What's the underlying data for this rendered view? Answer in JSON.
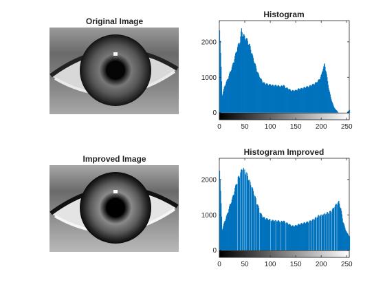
{
  "figure": {
    "panels": [
      {
        "id": "original-image",
        "title": "Original Image"
      },
      {
        "id": "histogram",
        "title": "Histogram"
      },
      {
        "id": "improved-image",
        "title": "Improved Image"
      },
      {
        "id": "histogram-improved",
        "title": "Histogram Improved"
      }
    ]
  },
  "chart_data": [
    {
      "type": "bar",
      "title": "Histogram",
      "xlabel": "",
      "ylabel": "",
      "xlim": [
        0,
        255
      ],
      "ylim": [
        -200,
        2600
      ],
      "x_ticks": [
        0,
        50,
        100,
        150,
        200,
        250
      ],
      "y_ticks": [
        0,
        1000,
        2000
      ],
      "bar_color": "#0072BD",
      "colorbar": "grayscale 0-255",
      "series": [
        {
          "values_by_intensity": [
            [
              0,
              2500
            ],
            [
              5,
              500
            ],
            [
              10,
              780
            ],
            [
              15,
              950
            ],
            [
              20,
              1150
            ],
            [
              25,
              1350
            ],
            [
              30,
              1620
            ],
            [
              35,
              1900
            ],
            [
              40,
              2080
            ],
            [
              43,
              2400
            ],
            [
              46,
              2250
            ],
            [
              50,
              2180
            ],
            [
              55,
              2080
            ],
            [
              60,
              1900
            ],
            [
              65,
              1620
            ],
            [
              70,
              1380
            ],
            [
              75,
              1150
            ],
            [
              80,
              1000
            ],
            [
              85,
              880
            ],
            [
              90,
              840
            ],
            [
              95,
              820
            ],
            [
              100,
              810
            ],
            [
              105,
              790
            ],
            [
              110,
              790
            ],
            [
              115,
              780
            ],
            [
              120,
              760
            ],
            [
              125,
              800
            ],
            [
              130,
              720
            ],
            [
              135,
              700
            ],
            [
              140,
              640
            ],
            [
              145,
              640
            ],
            [
              150,
              650
            ],
            [
              155,
              690
            ],
            [
              160,
              700
            ],
            [
              165,
              720
            ],
            [
              170,
              750
            ],
            [
              175,
              760
            ],
            [
              180,
              800
            ],
            [
              185,
              830
            ],
            [
              190,
              880
            ],
            [
              195,
              950
            ],
            [
              200,
              1100
            ],
            [
              203,
              1300
            ],
            [
              206,
              1400
            ],
            [
              209,
              1200
            ],
            [
              212,
              900
            ],
            [
              215,
              650
            ],
            [
              218,
              450
            ],
            [
              221,
              300
            ],
            [
              224,
              180
            ],
            [
              227,
              100
            ],
            [
              230,
              60
            ],
            [
              233,
              0
            ],
            [
              240,
              0
            ],
            [
              250,
              0
            ],
            [
              253,
              60
            ],
            [
              255,
              80
            ]
          ]
        }
      ]
    },
    {
      "type": "bar",
      "title": "Histogram Improved",
      "xlabel": "",
      "ylabel": "",
      "xlim": [
        0,
        255
      ],
      "ylim": [
        -200,
        2600
      ],
      "x_ticks": [
        0,
        50,
        100,
        150,
        200,
        250
      ],
      "y_ticks": [
        0,
        1000,
        2000
      ],
      "bar_color": "#0072BD",
      "colorbar": "grayscale 0-255",
      "series": [
        {
          "values_by_intensity": [
            [
              0,
              2420
            ],
            [
              5,
              600
            ],
            [
              10,
              850
            ],
            [
              15,
              1050
            ],
            [
              20,
              1300
            ],
            [
              25,
              1500
            ],
            [
              30,
              1780
            ],
            [
              35,
              2050
            ],
            [
              40,
              2200
            ],
            [
              45,
              2380
            ],
            [
              50,
              2300
            ],
            [
              55,
              2150
            ],
            [
              60,
              1950
            ],
            [
              65,
              1750
            ],
            [
              70,
              1520
            ],
            [
              75,
              1300
            ],
            [
              80,
              1080
            ],
            [
              85,
              960
            ],
            [
              90,
              920
            ],
            [
              95,
              900
            ],
            [
              100,
              880
            ],
            [
              105,
              860
            ],
            [
              110,
              860
            ],
            [
              115,
              850
            ],
            [
              120,
              830
            ],
            [
              125,
              850
            ],
            [
              130,
              800
            ],
            [
              135,
              770
            ],
            [
              140,
              720
            ],
            [
              145,
              700
            ],
            [
              150,
              720
            ],
            [
              155,
              750
            ],
            [
              160,
              770
            ],
            [
              165,
              790
            ],
            [
              170,
              810
            ],
            [
              175,
              830
            ],
            [
              180,
              860
            ],
            [
              185,
              900
            ],
            [
              190,
              960
            ],
            [
              195,
              1010
            ],
            [
              200,
              1020
            ],
            [
              205,
              1050
            ],
            [
              210,
              1080
            ],
            [
              215,
              1100
            ],
            [
              220,
              1150
            ],
            [
              225,
              1250
            ],
            [
              230,
              1350
            ],
            [
              234,
              1400
            ],
            [
              238,
              1200
            ],
            [
              242,
              850
            ],
            [
              246,
              650
            ],
            [
              250,
              500
            ],
            [
              255,
              400
            ]
          ]
        }
      ],
      "gaps_at": [
        35,
        40,
        45,
        48,
        52,
        58,
        62,
        68,
        72,
        78,
        100,
        110,
        120,
        130,
        175,
        180,
        185,
        190,
        195,
        200,
        205,
        210,
        215,
        220,
        225,
        230
      ]
    }
  ]
}
